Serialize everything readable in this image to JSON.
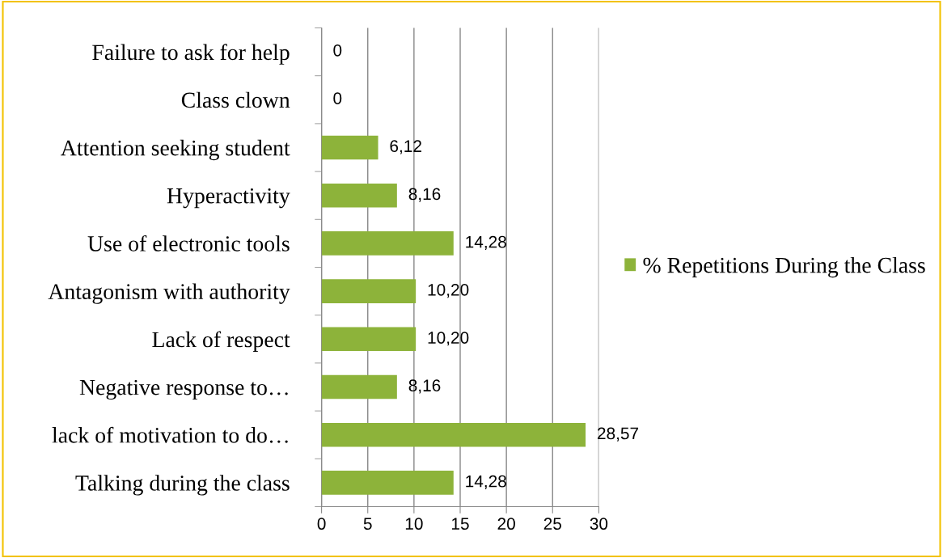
{
  "chart_data": {
    "type": "bar",
    "orientation": "horizontal",
    "categories": [
      "Failure to ask for help",
      "Class clown",
      "Attention seeking student",
      "Hyperactivity",
      "Use of electronic tools",
      "Antagonism with authority",
      "Lack of respect",
      "Negative response to…",
      "lack of motivation to do…",
      "Talking during the class"
    ],
    "series": [
      {
        "name": "% Repetitions During the Class",
        "color": "#8db33a",
        "values": [
          0,
          0,
          6.12,
          8.16,
          14.28,
          10.2,
          10.2,
          8.16,
          28.57,
          14.28
        ],
        "value_labels": [
          "0",
          "0",
          "6,12",
          "8,16",
          "14,28",
          "10,20",
          "10,20",
          "8,16",
          "28,57",
          "14,28"
        ]
      }
    ],
    "xlim": [
      0,
      30
    ],
    "xticks": [
      0,
      5,
      10,
      15,
      20,
      25,
      30
    ],
    "grid": "x",
    "legend": "right"
  }
}
